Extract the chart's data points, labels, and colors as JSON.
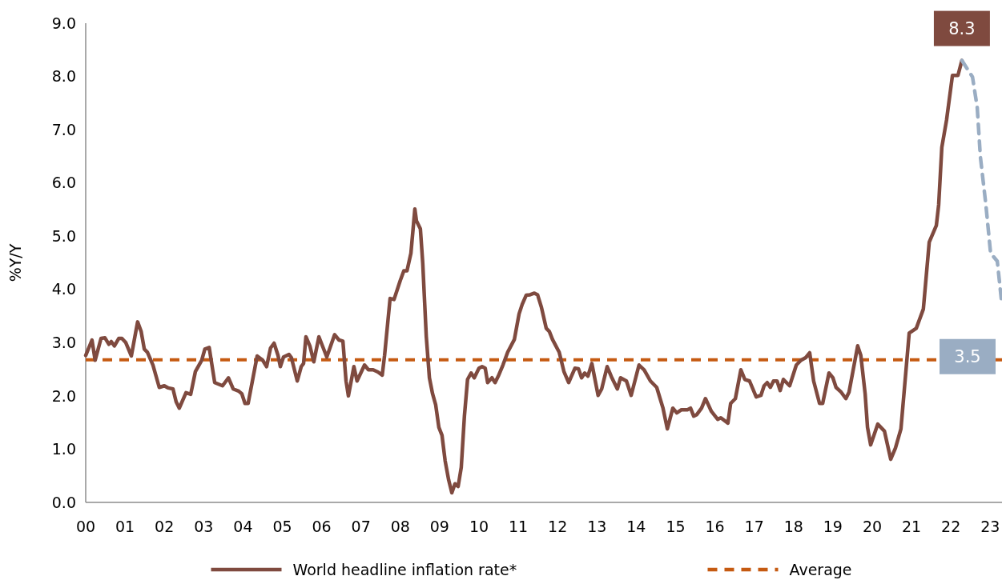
{
  "chart_data": {
    "type": "line",
    "ylabel": "%Y/Y",
    "xlim": [
      2000,
      2023.3
    ],
    "ylim": [
      0,
      9
    ],
    "xticks": [
      {
        "value": 2000,
        "label": "00"
      },
      {
        "value": 2001,
        "label": "01"
      },
      {
        "value": 2002,
        "label": "02"
      },
      {
        "value": 2003,
        "label": "03"
      },
      {
        "value": 2004,
        "label": "04"
      },
      {
        "value": 2005,
        "label": "05"
      },
      {
        "value": 2006,
        "label": "06"
      },
      {
        "value": 2007,
        "label": "07"
      },
      {
        "value": 2008,
        "label": "08"
      },
      {
        "value": 2009,
        "label": "09"
      },
      {
        "value": 2010,
        "label": "10"
      },
      {
        "value": 2011,
        "label": "11"
      },
      {
        "value": 2012,
        "label": "12"
      },
      {
        "value": 2013,
        "label": "13"
      },
      {
        "value": 2014,
        "label": "14"
      },
      {
        "value": 2015,
        "label": "15"
      },
      {
        "value": 2016,
        "label": "16"
      },
      {
        "value": 2017,
        "label": "17"
      },
      {
        "value": 2018,
        "label": "18"
      },
      {
        "value": 2019,
        "label": "19"
      },
      {
        "value": 2020,
        "label": "20"
      },
      {
        "value": 2021,
        "label": "21"
      },
      {
        "value": 2022,
        "label": "22"
      },
      {
        "value": 2023,
        "label": "23"
      }
    ],
    "yticks": [
      {
        "value": 0,
        "label": "0.0"
      },
      {
        "value": 1,
        "label": "1.0"
      },
      {
        "value": 2,
        "label": "2.0"
      },
      {
        "value": 3,
        "label": "3.0"
      },
      {
        "value": 4,
        "label": "4.0"
      },
      {
        "value": 5,
        "label": "5.0"
      },
      {
        "value": 6,
        "label": "6.0"
      },
      {
        "value": 7,
        "label": "7.0"
      },
      {
        "value": 8,
        "label": "8.0"
      },
      {
        "value": 9,
        "label": "9.0"
      }
    ],
    "grid": false,
    "legend": "bottom",
    "marker": "none",
    "series": [
      {
        "name": "World headline inflation rate*",
        "color": "#7f4a3f",
        "line_style": "solid",
        "x": [
          2000,
          2000.16,
          2000.24,
          2000.39,
          2000.49,
          2000.59,
          2000.65,
          2000.73,
          2000.84,
          2000.92,
          2001.02,
          2001.16,
          2001.32,
          2001.41,
          2001.49,
          2001.57,
          2001.71,
          2001.87,
          2002,
          2002.1,
          2002.22,
          2002.3,
          2002.38,
          2002.55,
          2002.67,
          2002.79,
          2002.95,
          2003.03,
          2003.14,
          2003.28,
          2003.48,
          2003.63,
          2003.75,
          2003.89,
          2003.97,
          2004.05,
          2004.13,
          2004.36,
          2004.5,
          2004.6,
          2004.7,
          2004.79,
          2004.89,
          2004.95,
          2005.03,
          2005.17,
          2005.23,
          2005.38,
          2005.48,
          2005.54,
          2005.6,
          2005.7,
          2005.8,
          2005.93,
          2006.13,
          2006.33,
          2006.44,
          2006.54,
          2006.62,
          2006.68,
          2006.82,
          2006.9,
          2007.09,
          2007.19,
          2007.31,
          2007.43,
          2007.54,
          2007.6,
          2007.74,
          2007.84,
          2008,
          2008.09,
          2008.17,
          2008.27,
          2008.37,
          2008.41,
          2008.51,
          2008.57,
          2008.66,
          2008.74,
          2008.82,
          2008.9,
          2008.98,
          2009.06,
          2009.14,
          2009.23,
          2009.31,
          2009.39,
          2009.47,
          2009.55,
          2009.63,
          2009.71,
          2009.8,
          2009.88,
          2010,
          2010.08,
          2010.16,
          2010.22,
          2010.33,
          2010.41,
          2010.49,
          2010.61,
          2010.73,
          2010.9,
          2011.02,
          2011.1,
          2011.2,
          2011.3,
          2011.41,
          2011.49,
          2011.59,
          2011.71,
          2011.79,
          2011.87,
          2012.04,
          2012.16,
          2012.28,
          2012.44,
          2012.53,
          2012.61,
          2012.69,
          2012.77,
          2012.87,
          2013.03,
          2013.12,
          2013.26,
          2013.38,
          2013.52,
          2013.6,
          2013.75,
          2013.87,
          2014.07,
          2014.2,
          2014.36,
          2014.52,
          2014.68,
          2014.79,
          2014.93,
          2015.03,
          2015.15,
          2015.3,
          2015.38,
          2015.46,
          2015.54,
          2015.66,
          2015.76,
          2015.91,
          2016.07,
          2016.15,
          2016.33,
          2016.4,
          2016.52,
          2016.66,
          2016.76,
          2016.88,
          2017.05,
          2017.17,
          2017.25,
          2017.33,
          2017.41,
          2017.49,
          2017.58,
          2017.66,
          2017.74,
          2017.9,
          2018.07,
          2018.19,
          2018.31,
          2018.41,
          2018.51,
          2018.66,
          2018.74,
          2018.9,
          2019,
          2019.08,
          2019.21,
          2019.33,
          2019.41,
          2019.63,
          2019.71,
          2019.82,
          2019.88,
          2019.96,
          2020.14,
          2020.31,
          2020.47,
          2020.59,
          2020.73,
          2020.94,
          2021,
          2021.12,
          2021.3,
          2021.45,
          2021.63,
          2021.69,
          2021.77,
          2021.89,
          2022.04,
          2022.18,
          2022.28
        ],
        "values": [
          2.76,
          3.05,
          2.67,
          3.08,
          3.09,
          2.97,
          3.02,
          2.94,
          3.08,
          3.08,
          3.0,
          2.75,
          3.39,
          3.21,
          2.88,
          2.82,
          2.58,
          2.16,
          2.19,
          2.15,
          2.13,
          1.89,
          1.77,
          2.06,
          2.03,
          2.46,
          2.67,
          2.88,
          2.91,
          2.25,
          2.19,
          2.34,
          2.13,
          2.09,
          2.04,
          1.86,
          1.86,
          2.75,
          2.67,
          2.55,
          2.9,
          2.99,
          2.76,
          2.55,
          2.73,
          2.78,
          2.72,
          2.28,
          2.55,
          2.61,
          3.11,
          2.94,
          2.64,
          3.11,
          2.73,
          3.15,
          3.05,
          3.03,
          2.28,
          2.0,
          2.55,
          2.28,
          2.58,
          2.49,
          2.49,
          2.45,
          2.39,
          2.76,
          3.83,
          3.81,
          4.17,
          4.35,
          4.35,
          4.68,
          5.51,
          5.29,
          5.14,
          4.5,
          3.12,
          2.34,
          2.04,
          1.83,
          1.41,
          1.26,
          0.78,
          0.42,
          0.18,
          0.35,
          0.3,
          0.66,
          1.62,
          2.31,
          2.43,
          2.34,
          2.52,
          2.55,
          2.52,
          2.25,
          2.34,
          2.25,
          2.37,
          2.58,
          2.82,
          3.06,
          3.54,
          3.72,
          3.89,
          3.9,
          3.93,
          3.9,
          3.66,
          3.27,
          3.21,
          3.06,
          2.82,
          2.46,
          2.25,
          2.52,
          2.51,
          2.34,
          2.43,
          2.37,
          2.61,
          2.01,
          2.13,
          2.55,
          2.34,
          2.13,
          2.34,
          2.28,
          2.01,
          2.58,
          2.49,
          2.28,
          2.16,
          1.77,
          1.38,
          1.77,
          1.68,
          1.74,
          1.74,
          1.77,
          1.62,
          1.65,
          1.77,
          1.95,
          1.71,
          1.56,
          1.59,
          1.49,
          1.86,
          1.95,
          2.49,
          2.31,
          2.28,
          1.98,
          2.01,
          2.19,
          2.25,
          2.16,
          2.28,
          2.28,
          2.1,
          2.31,
          2.19,
          2.58,
          2.67,
          2.72,
          2.81,
          2.28,
          1.86,
          1.86,
          2.43,
          2.34,
          2.16,
          2.07,
          1.95,
          2.07,
          2.94,
          2.76,
          2.04,
          1.41,
          1.08,
          1.47,
          1.34,
          0.81,
          1.02,
          1.38,
          3.18,
          3.21,
          3.27,
          3.63,
          4.89,
          5.2,
          5.59,
          6.67,
          7.18,
          8.02,
          8.02,
          8.3
        ]
      },
      {
        "color": "#9aadc3",
        "line_style": "dashed",
        "x": [
          2022.28,
          2022.55,
          2022.67,
          2022.75,
          2022.89,
          2023.01,
          2023.18,
          2023.3
        ],
        "values": [
          8.3,
          7.99,
          7.42,
          6.49,
          5.59,
          4.68,
          4.53,
          3.7
        ]
      }
    ],
    "ref_lines": [
      {
        "axis": "y",
        "value": 2.68,
        "label": "Average",
        "color": "#c55a11",
        "line_style": "dashed"
      }
    ],
    "annotations": [
      {
        "text": "8.3",
        "x": 2022.28,
        "y": 8.3
      },
      "3.5"
    ]
  }
}
